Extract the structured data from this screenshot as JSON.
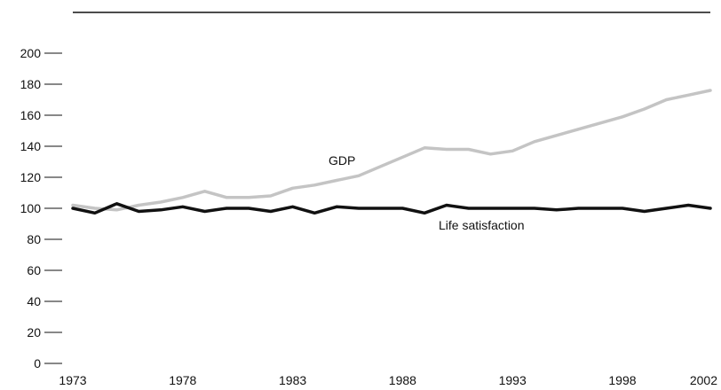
{
  "chart_data": {
    "type": "line",
    "x": [
      1973,
      1974,
      1975,
      1976,
      1977,
      1978,
      1979,
      1980,
      1981,
      1982,
      1983,
      1984,
      1985,
      1986,
      1987,
      1988,
      1989,
      1990,
      1991,
      1992,
      1993,
      1994,
      1995,
      1996,
      1997,
      1998,
      1999,
      2000,
      2001,
      2002
    ],
    "x_ticks": [
      "1973",
      "1978",
      "1983",
      "1988",
      "1993",
      "1998",
      "2002"
    ],
    "y_ticks": [
      "0",
      "20",
      "40",
      "60",
      "80",
      "100",
      "120",
      "140",
      "160",
      "180",
      "200"
    ],
    "ylim": [
      0,
      200
    ],
    "grid": false,
    "series": [
      {
        "name": "GDP",
        "color": "#c4c4c4",
        "values": [
          102,
          100,
          99,
          102,
          104,
          107,
          111,
          107,
          107,
          108,
          113,
          115,
          118,
          121,
          127,
          133,
          139,
          138,
          138,
          135,
          137,
          143,
          147,
          151,
          155,
          159,
          164,
          170,
          173,
          176
        ]
      },
      {
        "name": "Life satisfaction",
        "color": "#111111",
        "values": [
          100,
          97,
          103,
          98,
          99,
          101,
          98,
          100,
          100,
          98,
          101,
          97,
          101,
          100,
          100,
          100,
          97,
          102,
          100,
          100,
          100,
          100,
          99,
          100,
          100,
          100,
          98,
          100,
          102,
          100
        ]
      }
    ]
  }
}
